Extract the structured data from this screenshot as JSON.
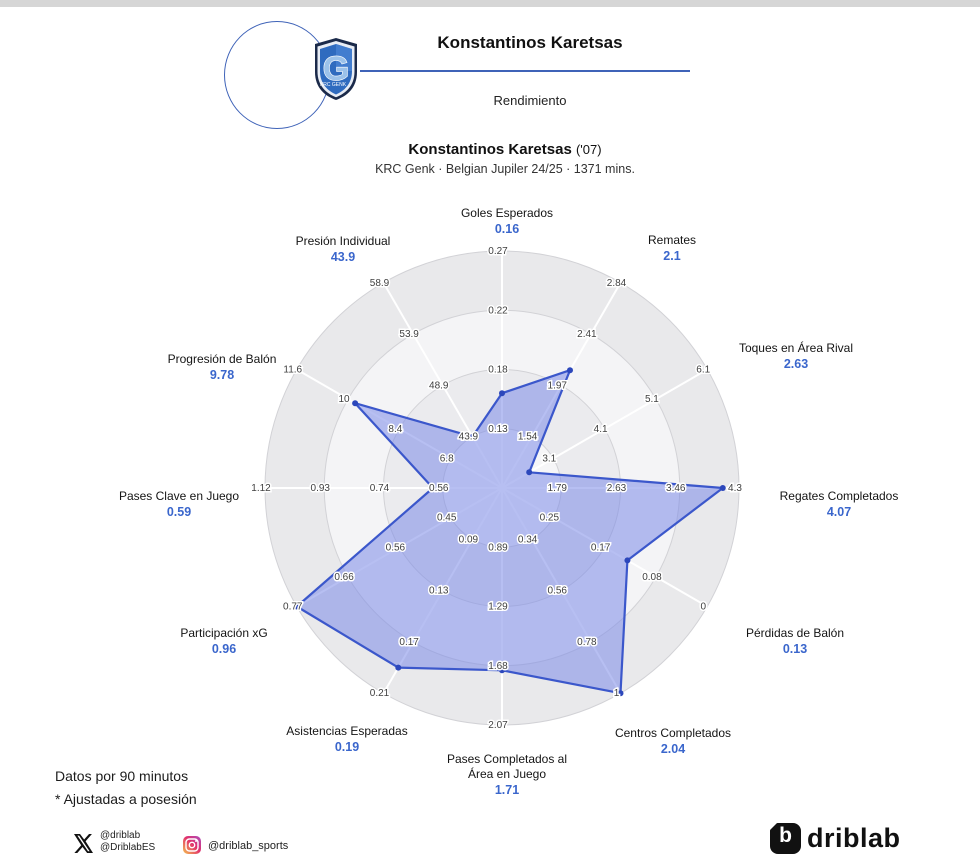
{
  "header": {
    "title": "Konstantinos Karetsas",
    "section": "Rendimiento"
  },
  "chart_header": {
    "player": "Konstantinos Karetsas",
    "tag": "('07)",
    "meta": "KRC Genk · Belgian Jupiler 24/25 · 1371 mins."
  },
  "chart_data": {
    "type": "radar",
    "title": "Konstantinos Karetsas ('07)",
    "subtitle": "KRC Genk · Belgian Jupiler 24/25 · 1371 mins.",
    "ring_fractions": [
      0.25,
      0.5,
      0.75,
      1.0
    ],
    "axes": [
      {
        "label": "Goles Esperados",
        "label_lines": [
          "Goles Esperados"
        ],
        "value": 0.16,
        "value_label": "0.16",
        "ticks": [
          0.13,
          0.18,
          0.22,
          0.27
        ],
        "tick_labels": [
          "0.13",
          "0.18",
          "0.22",
          "0.27"
        ]
      },
      {
        "label": "Remates",
        "label_lines": [
          "Remates"
        ],
        "value": 2.1,
        "value_label": "2.1",
        "ticks": [
          1.54,
          1.97,
          2.41,
          2.84
        ],
        "tick_labels": [
          "1.54",
          "1.97",
          "2.41",
          "2.84"
        ]
      },
      {
        "label": "Toques en Área Rival",
        "label_lines": [
          "Toques en Área Rival"
        ],
        "value": 2.63,
        "value_label": "2.63",
        "ticks": [
          3.1,
          4.1,
          5.1,
          6.1
        ],
        "tick_labels": [
          "3.1",
          "4.1",
          "5.1",
          "6.1"
        ]
      },
      {
        "label": "Regates Completados",
        "label_lines": [
          "Regates Completados"
        ],
        "value": 4.07,
        "value_label": "4.07",
        "ticks": [
          1.79,
          2.63,
          3.46,
          4.3
        ],
        "tick_labels": [
          "1.79",
          "2.63",
          "3.46",
          "4.3"
        ]
      },
      {
        "label": "Pérdidas de Balón",
        "label_lines": [
          "Pérdidas de Balón"
        ],
        "value": 0.13,
        "value_label": "0.13",
        "ticks": [
          0.25,
          0.17,
          0.08,
          0
        ],
        "tick_labels": [
          "0.25",
          "0.17",
          "0.08",
          "0"
        ]
      },
      {
        "label": "Centros Completados",
        "label_lines": [
          "Centros Completados"
        ],
        "value": 2.04,
        "value_label": "2.04",
        "ticks": [
          0.34,
          0.56,
          0.78,
          1
        ],
        "tick_labels": [
          "0.34",
          "0.56",
          "0.78",
          "1"
        ]
      },
      {
        "label": "Pases Completados al Área en Juego",
        "label_lines": [
          "Pases Completados al",
          "Área en Juego"
        ],
        "value": 1.71,
        "value_label": "1.71",
        "ticks": [
          0.89,
          1.29,
          1.68,
          2.07
        ],
        "tick_labels": [
          "0.89",
          "1.29",
          "1.68",
          "2.07"
        ]
      },
      {
        "label": "Asistencias Esperadas",
        "label_lines": [
          "Asistencias Esperadas"
        ],
        "value": 0.19,
        "value_label": "0.19",
        "ticks": [
          0.09,
          0.13,
          0.17,
          0.21
        ],
        "tick_labels": [
          "0.09",
          "0.13",
          "0.17",
          "0.21"
        ]
      },
      {
        "label": "Participación xG",
        "label_lines": [
          "Participación xG"
        ],
        "value": 0.96,
        "value_label": "0.96",
        "ticks": [
          0.45,
          0.56,
          0.66,
          0.77
        ],
        "tick_labels": [
          "0.45",
          "0.56",
          "0.66",
          "0.77"
        ]
      },
      {
        "label": "Pases Clave en Juego",
        "label_lines": [
          "Pases Clave en Juego"
        ],
        "value": 0.59,
        "value_label": "0.59",
        "ticks": [
          0.56,
          0.74,
          0.93,
          1.12
        ],
        "tick_labels": [
          "0.56",
          "0.74",
          "0.93",
          "1.12"
        ]
      },
      {
        "label": "Progresión de Balón",
        "label_lines": [
          "Progresión de Balón"
        ],
        "value": 9.78,
        "value_label": "9.78",
        "ticks": [
          6.8,
          8.4,
          10,
          11.6
        ],
        "tick_labels": [
          "6.8",
          "8.4",
          "10",
          "11.6"
        ]
      },
      {
        "label": "Presión Individual",
        "label_lines": [
          "Presión Individual"
        ],
        "value": 43.9,
        "value_label": "43.9",
        "ticks": [
          43.9,
          48.9,
          53.9,
          58.9
        ],
        "tick_labels": [
          "43.9",
          "48.9",
          "53.9",
          "58.9"
        ]
      }
    ],
    "colors": {
      "value_text": "#3a66cc",
      "polygon_fill": "#7c8be8",
      "polygon_stroke": "#3b57cb",
      "vertex_dot": "#2c47bb",
      "ring_bands": [
        "#e9e9eb",
        "#f4f4f6",
        "#ebebee",
        "#f6f6f8"
      ],
      "ring_stroke": "#d2d2d6",
      "tick_text": "#3f3f3f",
      "header_line": "#3f63b8"
    }
  },
  "footnotes": {
    "line1": "Datos por 90 minutos",
    "line2": "* Ajustadas a posesión"
  },
  "social": {
    "x_handle1": "@driblab",
    "x_handle2": "@DriblabES",
    "instagram_handle": "@driblab_sports"
  },
  "brand": {
    "icon_letter": "b",
    "name": "driblab"
  }
}
